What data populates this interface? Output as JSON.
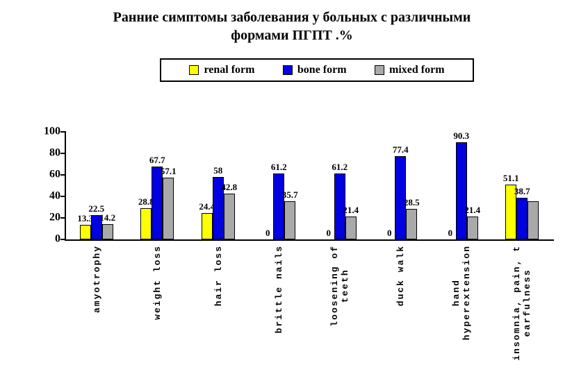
{
  "title": {
    "line1": "Ранние симптомы заболевания у больных с различными",
    "line2": "формами ПГПТ .%"
  },
  "legend": {
    "items": [
      {
        "label": "renal form",
        "color": "#FFFF00"
      },
      {
        "label": "bone form",
        "color": "#0000E0"
      },
      {
        "label": "mixed form",
        "color": "#A9A9A9"
      }
    ]
  },
  "chart_data": {
    "type": "bar",
    "title": "Ранние симптомы заболевания у больных с различными формами ПГПТ .%",
    "xlabel": "",
    "ylabel": "",
    "ylim": [
      0,
      100
    ],
    "yticks": [
      0,
      20,
      40,
      60,
      80,
      100
    ],
    "grid": false,
    "legend_position": "top",
    "categories": [
      "amyotrophy",
      "weight loss",
      "hair loss",
      "brittle nails",
      "loosening of teeth",
      "duck walk",
      "hand hyperextension",
      "insomnia, pain, tearfulness"
    ],
    "category_lines": [
      [
        "amyotrophy"
      ],
      [
        "weight loss"
      ],
      [
        "hair loss"
      ],
      [
        "brittle nails"
      ],
      [
        "loosening of",
        "teeth"
      ],
      [
        "duck walk"
      ],
      [
        "hand",
        "hyperextension"
      ],
      [
        "insomnia, pain, t",
        "earfulness"
      ]
    ],
    "series": [
      {
        "name": "renal form",
        "color": "#FFFF00",
        "values": [
          13.3,
          28.8,
          24.4,
          0,
          0,
          0,
          0,
          51.1
        ],
        "labels": [
          "13.3",
          "28.8",
          "24.4",
          "0",
          "0",
          "0",
          "0",
          "51.1"
        ]
      },
      {
        "name": "bone form",
        "color": "#0000E0",
        "values": [
          22.5,
          67.7,
          58,
          61.2,
          61.2,
          77.4,
          90.3,
          38.7
        ],
        "labels": [
          "22.5",
          "67.7",
          "58",
          "61.2",
          "61.2",
          "77.4",
          "90.3",
          "38.7"
        ]
      },
      {
        "name": "mixed form",
        "color": "#A9A9A9",
        "values": [
          14.2,
          57.1,
          42.8,
          35.7,
          21.4,
          28.5,
          21.4,
          35.5
        ],
        "labels": [
          "14.2",
          "57.1",
          "42.8",
          "35.7",
          "21.4",
          "28.5",
          "21.4",
          ""
        ]
      }
    ]
  }
}
